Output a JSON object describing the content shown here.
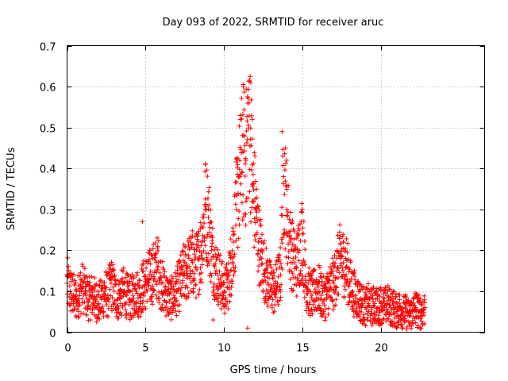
{
  "chart_data": {
    "type": "scatter",
    "title": "Day 093 of 2022, SRMTID for receiver aruc",
    "xlabel": "GPS time / hours",
    "ylabel": "SRMTID / TECUs",
    "xlim": [
      0,
      26.6
    ],
    "ylim": [
      0,
      0.7
    ],
    "x_ticks": [
      0,
      5,
      10,
      15,
      20
    ],
    "x_tick_labels": [
      "0",
      "5",
      "10",
      "15",
      "20"
    ],
    "y_ticks": [
      0,
      0.1,
      0.2,
      0.3,
      0.4,
      0.5,
      0.6,
      0.7
    ],
    "y_tick_labels": [
      "0",
      "0.1",
      "0.2",
      "0.3",
      "0.4",
      "0.5",
      "0.6",
      "0.7"
    ],
    "grid": true,
    "marker": "+",
    "color": "#ff0000",
    "series": [
      {
        "name": "SRMTID",
        "x": [
          0.0,
          0.2,
          0.4,
          0.6,
          0.8,
          1.0,
          1.2,
          1.4,
          1.6,
          1.8,
          2.0,
          2.2,
          2.4,
          2.6,
          2.8,
          3.0,
          3.2,
          3.4,
          3.6,
          3.8,
          4.0,
          4.2,
          4.4,
          4.6,
          4.8,
          5.0,
          5.2,
          5.4,
          5.6,
          5.8,
          6.0,
          6.2,
          6.4,
          6.6,
          6.8,
          7.0,
          7.2,
          7.4,
          7.6,
          7.8,
          8.0,
          8.2,
          8.4,
          8.6,
          8.8,
          9.0,
          9.2,
          9.4,
          9.6,
          9.8,
          10.0,
          10.2,
          10.4,
          10.6,
          10.8,
          11.0,
          11.2,
          11.4,
          11.6,
          11.8,
          12.0,
          12.2,
          12.4,
          12.6,
          12.8,
          13.0,
          13.2,
          13.4,
          13.6,
          13.8,
          14.0,
          14.2,
          14.4,
          14.6,
          14.8,
          15.0,
          15.2,
          15.4,
          15.6,
          15.8,
          16.0,
          16.2,
          16.4,
          16.6,
          16.8,
          17.0,
          17.2,
          17.4,
          17.6,
          17.8,
          18.0,
          18.2,
          18.4,
          18.6,
          18.8,
          19.0,
          19.2,
          19.4,
          19.6,
          19.8,
          20.0,
          20.2,
          20.4,
          20.6,
          20.8,
          21.0,
          21.2,
          21.4,
          21.6,
          21.8,
          22.0,
          22.2,
          22.4,
          22.6,
          22.8
        ],
        "y": [
          0.12,
          0.1,
          0.09,
          0.08,
          0.1,
          0.11,
          0.09,
          0.08,
          0.09,
          0.08,
          0.07,
          0.08,
          0.1,
          0.09,
          0.12,
          0.1,
          0.08,
          0.09,
          0.1,
          0.09,
          0.08,
          0.09,
          0.1,
          0.09,
          0.11,
          0.12,
          0.13,
          0.14,
          0.15,
          0.16,
          0.12,
          0.1,
          0.09,
          0.08,
          0.09,
          0.1,
          0.12,
          0.14,
          0.15,
          0.16,
          0.17,
          0.16,
          0.18,
          0.22,
          0.3,
          0.28,
          0.2,
          0.16,
          0.14,
          0.12,
          0.1,
          0.11,
          0.15,
          0.22,
          0.3,
          0.38,
          0.44,
          0.42,
          0.56,
          0.36,
          0.3,
          0.22,
          0.18,
          0.15,
          0.12,
          0.11,
          0.1,
          0.12,
          0.14,
          0.38,
          0.3,
          0.22,
          0.18,
          0.16,
          0.2,
          0.24,
          0.12,
          0.1,
          0.09,
          0.1,
          0.11,
          0.09,
          0.08,
          0.1,
          0.11,
          0.12,
          0.15,
          0.18,
          0.17,
          0.16,
          0.12,
          0.1,
          0.09,
          0.08,
          0.07,
          0.06,
          0.07,
          0.06,
          0.07,
          0.06,
          0.07,
          0.06,
          0.07,
          0.06,
          0.06,
          0.05,
          0.06,
          0.05,
          0.05,
          0.04,
          0.05,
          0.06,
          0.05,
          0.05,
          0.06
        ],
        "extremes": [
          {
            "x": 8.8,
            "y": 0.41
          },
          {
            "x": 11.7,
            "y": 0.61
          },
          {
            "x": 11.8,
            "y": 0.52
          },
          {
            "x": 13.7,
            "y": 0.49
          },
          {
            "x": 4.8,
            "y": 0.27
          },
          {
            "x": 11.5,
            "y": 0.01
          },
          {
            "x": 9.3,
            "y": 0.03
          }
        ]
      }
    ]
  }
}
